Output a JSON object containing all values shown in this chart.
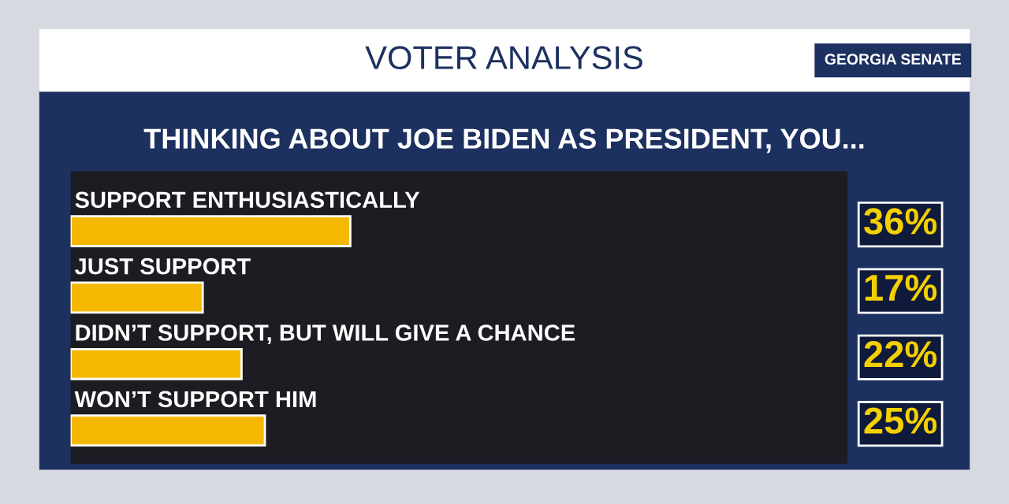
{
  "chart_data": {
    "type": "bar",
    "orientation": "horizontal",
    "title": "THINKING ABOUT JOE BIDEN AS PRESIDENT, YOU...",
    "annotations": [
      "VOTER ANALYSIS",
      "GEORGIA SENATE"
    ],
    "categories": [
      "SUPPORT ENTHUSIASTICALLY",
      "JUST SUPPORT",
      "DIDN’T SUPPORT, BUT WILL GIVE A CHANCE",
      "WON’T SUPPORT HIM"
    ],
    "values": [
      36,
      17,
      22,
      25
    ],
    "color": "#f5b800",
    "xlim": [
      0,
      100
    ],
    "value_labels": [
      "36%",
      "17%",
      "22%",
      "25%"
    ]
  }
}
